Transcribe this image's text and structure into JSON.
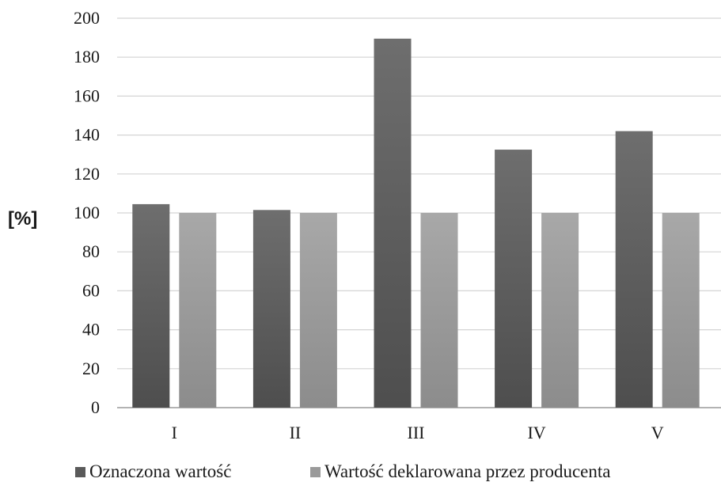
{
  "chart_data": {
    "type": "bar",
    "title": "",
    "xlabel": "",
    "ylabel": "[%]",
    "ylim": [
      0,
      200
    ],
    "yticks": [
      0,
      20,
      40,
      60,
      80,
      100,
      120,
      140,
      160,
      180,
      200
    ],
    "categories": [
      "I",
      "II",
      "III",
      "IV",
      "V"
    ],
    "series": [
      {
        "name": "Oznaczona wartość",
        "color": "#5a5a5a",
        "values": [
          104.5,
          101.5,
          189.5,
          132.5,
          142
        ]
      },
      {
        "name": "Wartość deklarowana przez producenta",
        "color": "#9a9a9a",
        "values": [
          100,
          100,
          100,
          100,
          100
        ]
      }
    ],
    "grid": true,
    "legend_position": "bottom"
  }
}
